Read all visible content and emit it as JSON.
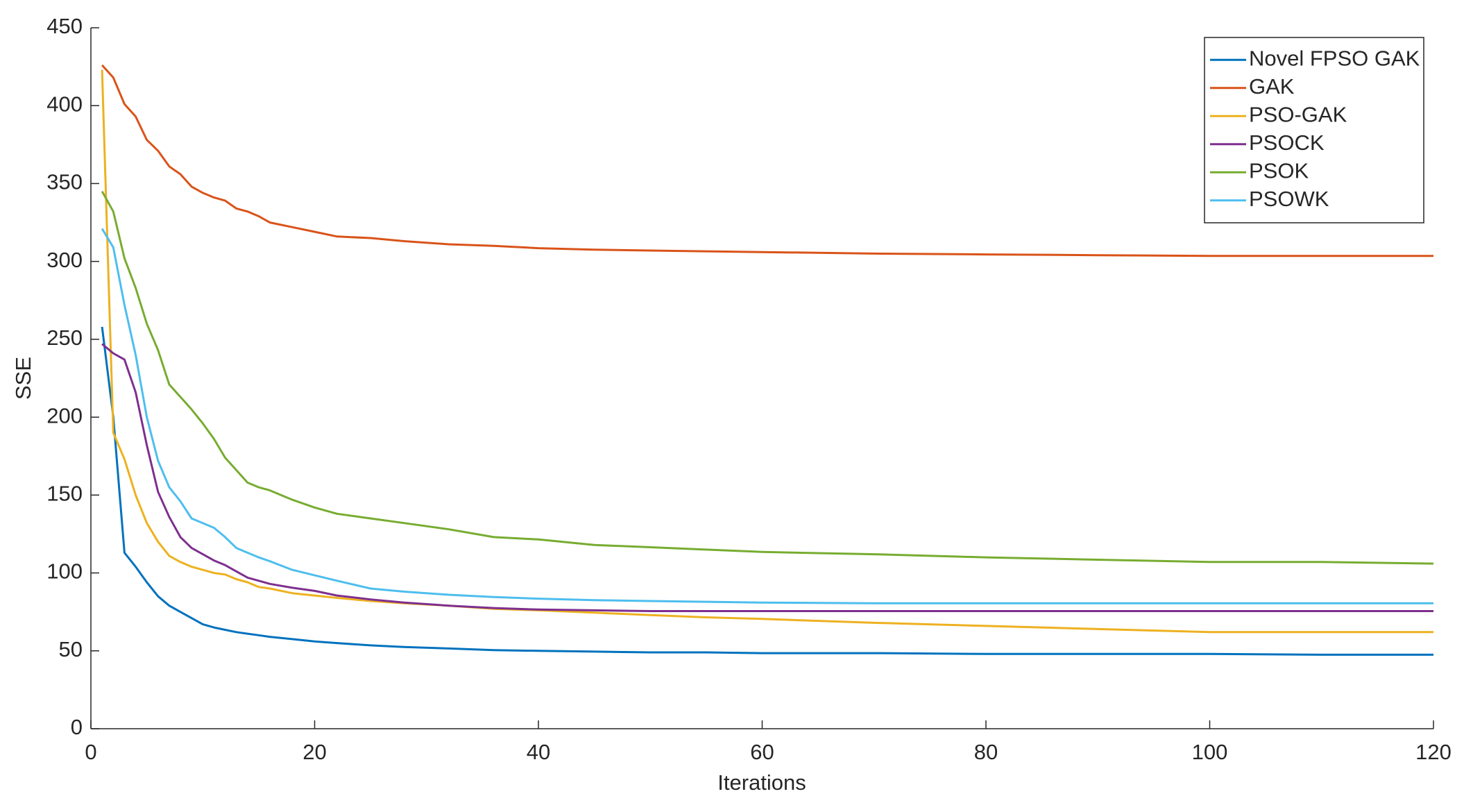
{
  "chart_data": {
    "type": "line",
    "xlabel": "Iterations",
    "ylabel": "SSE",
    "x": [
      1,
      2,
      3,
      4,
      5,
      6,
      7,
      8,
      9,
      10,
      11,
      12,
      13,
      14,
      15,
      16,
      18,
      20,
      22,
      25,
      28,
      32,
      36,
      40,
      45,
      50,
      55,
      60,
      70,
      80,
      90,
      100,
      110,
      120
    ],
    "xlim": [
      0,
      120
    ],
    "xticks": [
      0,
      20,
      40,
      60,
      80,
      100,
      120
    ],
    "ylim": [
      0,
      450
    ],
    "yticks": [
      0,
      50,
      100,
      150,
      200,
      250,
      300,
      350,
      400,
      450
    ],
    "grid": false,
    "legend": "northeast",
    "series": [
      {
        "name": "Novel FPSO GAK",
        "color": "#0072BD",
        "values": [
          258,
          200,
          113,
          104,
          94,
          85,
          79,
          75,
          71,
          67,
          65,
          63.5,
          62,
          61,
          60,
          59,
          57.5,
          56,
          55,
          53.5,
          52.5,
          51.5,
          50.5,
          50,
          49.5,
          49,
          49,
          48.5,
          48.5,
          48,
          48,
          48,
          47.5,
          47.5
        ]
      },
      {
        "name": "GAK",
        "color": "#D95319",
        "values": [
          426,
          418,
          401,
          393,
          378,
          371,
          361,
          356,
          348,
          344,
          341,
          339,
          334,
          332,
          329,
          325,
          322,
          319,
          316,
          315,
          313,
          311,
          310,
          308.5,
          307.5,
          307,
          306.5,
          306,
          305,
          304.5,
          304,
          303.5,
          303.5,
          303.5
        ]
      },
      {
        "name": "PSO-GAK",
        "color": "#EDB120",
        "values": [
          423,
          190,
          173,
          150,
          132,
          120,
          111,
          107,
          104,
          102,
          100,
          99,
          96,
          94,
          91,
          90,
          87,
          85.5,
          84,
          82,
          80.5,
          79,
          77,
          76,
          74.5,
          73,
          71.5,
          70.5,
          68,
          66,
          64,
          62,
          62,
          62
        ]
      },
      {
        "name": "PSOCK",
        "color": "#7E2F8E",
        "values": [
          247,
          241,
          237,
          216,
          182,
          152,
          136,
          123,
          116,
          112,
          108,
          105,
          101,
          97,
          95,
          93,
          90.5,
          88.5,
          85.5,
          83,
          81,
          79,
          77.5,
          76.5,
          76,
          75.5,
          75.5,
          75.5,
          75.5,
          75.5,
          75.5,
          75.5,
          75.5,
          75.5
        ]
      },
      {
        "name": "PSOK",
        "color": "#77AC30",
        "values": [
          345,
          332,
          302,
          283,
          260,
          243,
          221,
          213,
          205,
          196,
          186,
          174,
          166,
          158,
          155,
          153,
          147,
          142,
          138,
          135,
          132,
          128,
          123,
          121.5,
          118,
          116.5,
          115,
          113.5,
          112,
          110,
          108.5,
          107,
          107,
          106
        ]
      },
      {
        "name": "PSOWK",
        "color": "#4DBEEE",
        "values": [
          321,
          309,
          272,
          240,
          200,
          172,
          155,
          146,
          135,
          132,
          129,
          123,
          116,
          113,
          110,
          107.5,
          102,
          98.5,
          95,
          90,
          88,
          86,
          84.5,
          83.5,
          82.5,
          82,
          81.5,
          81,
          80.5,
          80.5,
          80.5,
          80.5,
          80.5,
          80.5
        ]
      }
    ]
  }
}
